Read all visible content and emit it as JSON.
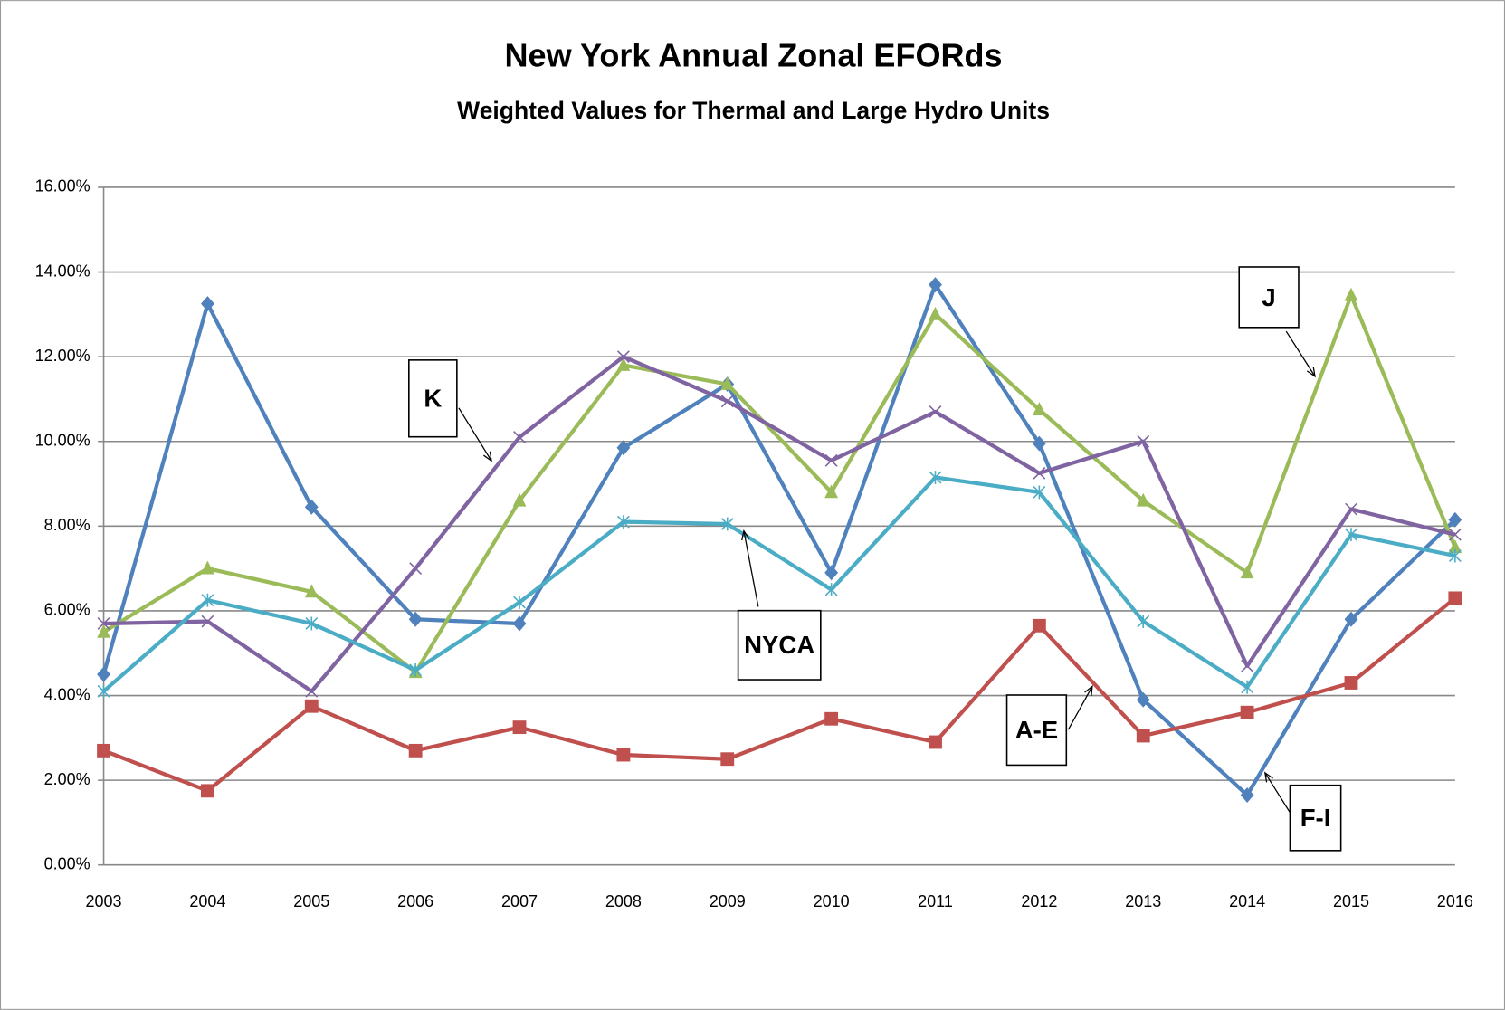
{
  "chart_data": {
    "type": "line",
    "title": "New York Annual Zonal EFORds",
    "subtitle": "Weighted Values for Thermal and Large Hydro Units",
    "categories": [
      "2003",
      "2004",
      "2005",
      "2006",
      "2007",
      "2008",
      "2009",
      "2010",
      "2011",
      "2012",
      "2013",
      "2014",
      "2015",
      "2016"
    ],
    "series": [
      {
        "name": "F-I",
        "color": "#4f81bd",
        "marker": "diamond",
        "values": [
          4.5,
          13.25,
          8.45,
          5.8,
          5.7,
          9.85,
          11.35,
          6.9,
          13.7,
          9.95,
          3.9,
          1.65,
          5.8,
          8.15
        ]
      },
      {
        "name": "A-E",
        "color": "#c0504d",
        "marker": "square",
        "values": [
          2.7,
          1.75,
          3.75,
          2.7,
          3.25,
          2.6,
          2.5,
          3.45,
          2.9,
          5.65,
          3.05,
          3.6,
          4.3,
          6.3
        ]
      },
      {
        "name": "J",
        "color": "#9bbb59",
        "marker": "triangle",
        "values": [
          5.5,
          7.0,
          6.45,
          4.55,
          8.6,
          11.8,
          11.35,
          8.8,
          13.0,
          10.75,
          8.6,
          6.9,
          13.45,
          7.5
        ]
      },
      {
        "name": "K",
        "color": "#8064a2",
        "marker": "x",
        "values": [
          5.7,
          5.75,
          4.1,
          7.0,
          10.1,
          12.0,
          10.95,
          9.55,
          10.7,
          9.25,
          10.0,
          4.7,
          8.4,
          7.8
        ]
      },
      {
        "name": "NYCA",
        "color": "#4bacc6",
        "marker": "star",
        "values": [
          4.1,
          6.25,
          5.7,
          4.6,
          6.2,
          8.1,
          8.05,
          6.5,
          9.15,
          8.8,
          5.75,
          4.2,
          7.8,
          7.3
        ]
      }
    ],
    "ylim": [
      0,
      16
    ],
    "yticks": [
      {
        "value": 0,
        "label": "0.00%"
      },
      {
        "value": 2,
        "label": "2.00%"
      },
      {
        "value": 4,
        "label": "4.00%"
      },
      {
        "value": 6,
        "label": "6.00%"
      },
      {
        "value": 8,
        "label": "8.00%"
      },
      {
        "value": 10,
        "label": "10.00%"
      },
      {
        "value": 12,
        "label": "12.00%"
      },
      {
        "value": 14,
        "label": "14.00%"
      },
      {
        "value": 16,
        "label": "16.00%"
      }
    ],
    "grid": true,
    "legend": "callouts"
  }
}
